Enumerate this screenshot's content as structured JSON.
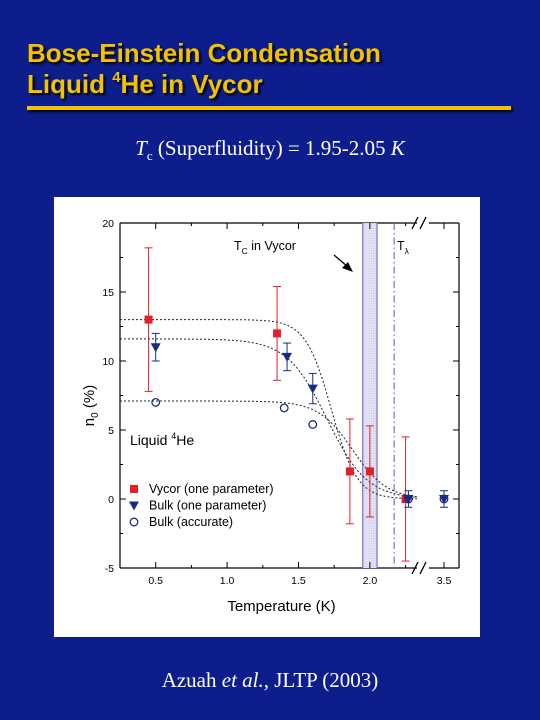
{
  "slide": {
    "title_line1": "Bose-Einstein Condensation",
    "title_line2_pre": "Liquid ",
    "title_line2_sup": "4",
    "title_line2_post": "He in Vycor",
    "tc_symbol": "T",
    "tc_sub": "c",
    "tc_text": " (Superfluidity) = 1.95-2.05 ",
    "tc_unit": "K",
    "citation_author": "Azuah ",
    "citation_etal": "et al.",
    "citation_rest": ", JLTP (2003)",
    "title_color": "#f2c200",
    "background_color": "#0d1d8c"
  },
  "chart_data": {
    "type": "scatter",
    "xlabel": "Temperature (K)",
    "ylabel_main": "n",
    "ylabel_sub": "0",
    "ylabel_rest": " (%)",
    "xlim": [
      0.25,
      2.33
    ],
    "break_xlim": [
      3.44,
      3.56
    ],
    "ylim": [
      -5,
      20
    ],
    "x_ticks": [
      0.5,
      1.0,
      1.5,
      2.0,
      3.5
    ],
    "x_tick_labels": [
      "0.5",
      "1.0",
      "1.5",
      "2.0",
      "3.5"
    ],
    "y_ticks": [
      -5,
      0,
      5,
      10,
      15,
      20
    ],
    "y_tick_labels": [
      "-5",
      "0",
      "5",
      "10",
      "15",
      "20"
    ],
    "axis_break": true,
    "inside_label_main": "Liquid ",
    "inside_label_sup": "4",
    "inside_label_rest": "He",
    "tc_vycor_label_main": "T",
    "tc_vycor_label_sub": "C",
    "tc_vycor_label_rest": " in Vycor",
    "t_lambda_label_main": "T",
    "t_lambda_label_sub": "λ",
    "tc_vycor_band": [
      1.95,
      2.05
    ],
    "t_lambda": 2.17,
    "legend_placement": "lower-left",
    "colors": {
      "vycor": "#e0202a",
      "bulk": "#1a2a80",
      "band": "#7070cc"
    },
    "series": [
      {
        "name": "Vycor (one parameter)",
        "marker": "square",
        "points": [
          {
            "x": 0.45,
            "y": 13.0,
            "err": 5.2
          },
          {
            "x": 1.35,
            "y": 12.0,
            "err": 3.4
          },
          {
            "x": 1.86,
            "y": 2.0,
            "err": 3.8
          },
          {
            "x": 2.0,
            "y": 2.0,
            "err": 3.3
          },
          {
            "x": 2.25,
            "y": 0.0,
            "err": 4.5
          }
        ]
      },
      {
        "name": "Bulk (one parameter)",
        "marker": "triangle-down",
        "points": [
          {
            "x": 0.5,
            "y": 11.0,
            "err": 1.0
          },
          {
            "x": 1.42,
            "y": 10.3,
            "err": 1.0
          },
          {
            "x": 1.6,
            "y": 8.0,
            "err": 1.1
          },
          {
            "x": 2.27,
            "y": 0.0,
            "err": 0.6
          },
          {
            "x": 3.5,
            "y": 0.0,
            "err": 0.6
          }
        ]
      },
      {
        "name": "Bulk (accurate)",
        "marker": "circle-open",
        "points": [
          {
            "x": 0.5,
            "y": 7.0
          },
          {
            "x": 1.4,
            "y": 6.6
          },
          {
            "x": 1.6,
            "y": 5.4
          },
          {
            "x": 2.27,
            "y": 0.0
          },
          {
            "x": 3.5,
            "y": 0.0
          }
        ]
      }
    ],
    "fit_curves": [
      {
        "of": "Vycor (one parameter)",
        "n0": 13.0,
        "Tc": 1.73,
        "w": 0.09
      },
      {
        "of": "Bulk (one parameter)",
        "n0": 11.6,
        "Tc": 1.7,
        "w": 0.14
      },
      {
        "of": "Bulk (accurate)",
        "n0": 7.1,
        "Tc": 1.88,
        "w": 0.12
      }
    ]
  }
}
